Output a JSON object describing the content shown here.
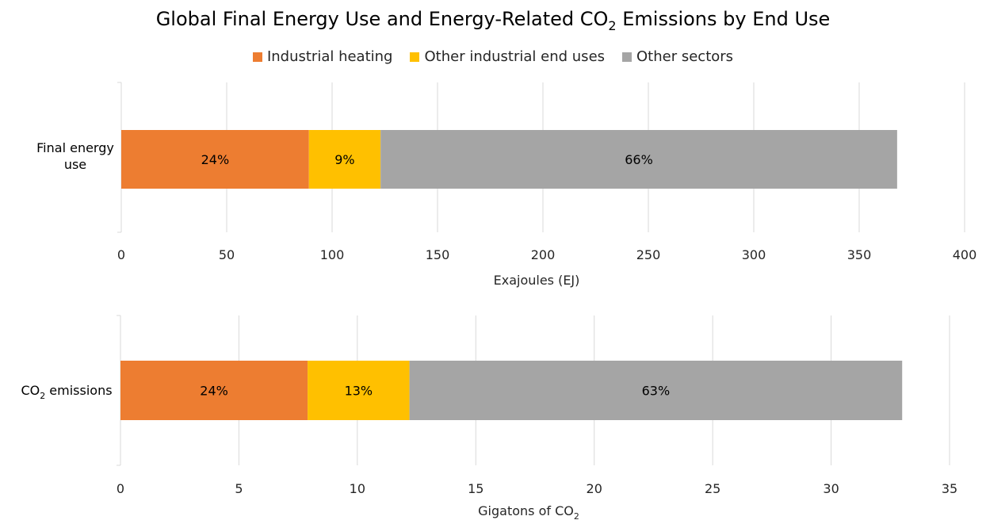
{
  "colors": {
    "industrial_heating": "#ED7D31",
    "other_industrial": "#FFC000",
    "other_sectors": "#A5A5A5",
    "gridline": "#D9D9D9"
  },
  "chart_data": {
    "title_pre": "Global Final Energy Use and Energy-Related CO",
    "title_sub": "2",
    "title_post": " Emissions by End Use",
    "legend_position": "top",
    "legend": [
      "Industrial heating",
      "Other industrial end uses",
      "Other sectors"
    ],
    "charts": [
      {
        "type": "bar",
        "orientation": "horizontal",
        "stacked": true,
        "category_lines": [
          "Final energy",
          "use"
        ],
        "category_pre": "",
        "category_sub": "",
        "category_post": "",
        "xlim": [
          0,
          400
        ],
        "ticks": [
          0,
          50,
          100,
          150,
          200,
          250,
          300,
          350,
          400
        ],
        "xlabel_pre": "Exajoules (EJ)",
        "xlabel_sub": "",
        "xlabel_post": "",
        "grid": true,
        "series": [
          {
            "name": "Industrial heating",
            "value": 89,
            "label": "24%"
          },
          {
            "name": "Other industrial end uses",
            "value": 34,
            "label": "9%"
          },
          {
            "name": "Other sectors",
            "value": 245,
            "label": "66%"
          }
        ]
      },
      {
        "type": "bar",
        "orientation": "horizontal",
        "stacked": true,
        "category_lines": [],
        "category_pre": "CO",
        "category_sub": "2",
        "category_post": " emissions",
        "xlim": [
          0,
          35
        ],
        "ticks": [
          0,
          5,
          10,
          15,
          20,
          25,
          30,
          35
        ],
        "xlabel_pre": "Gigatons of CO",
        "xlabel_sub": "2",
        "xlabel_post": "",
        "grid": true,
        "series": [
          {
            "name": "Industrial heating",
            "value": 7.9,
            "label": "24%"
          },
          {
            "name": "Other industrial end uses",
            "value": 4.3,
            "label": "13%"
          },
          {
            "name": "Other sectors",
            "value": 20.8,
            "label": "63%"
          }
        ]
      }
    ]
  }
}
